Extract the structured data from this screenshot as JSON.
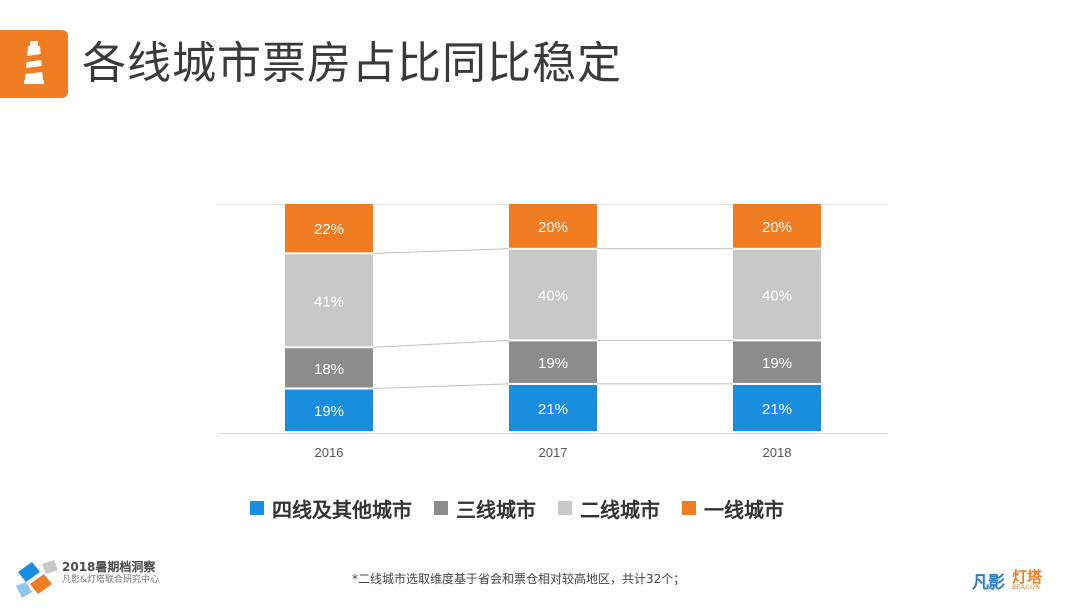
{
  "header": {
    "title": "各线城市票房占比同比稳定"
  },
  "colors": {
    "accent": "#f07d22",
    "series": [
      "#1a8ede",
      "#8c8c8c",
      "#c8c8c8",
      "#f07d22"
    ]
  },
  "chart_data": {
    "type": "bar",
    "stacked": true,
    "categories": [
      "2016",
      "2017",
      "2018"
    ],
    "series": [
      {
        "name": "四线及其他城市",
        "values": [
          19,
          21,
          21
        ]
      },
      {
        "name": "三线城市",
        "values": [
          18,
          19,
          19
        ]
      },
      {
        "name": "二线城市",
        "values": [
          41,
          40,
          40
        ]
      },
      {
        "name": "一线城市",
        "values": [
          22,
          20,
          20
        ]
      }
    ],
    "data_labels": [
      [
        "19%",
        "21%",
        "21%"
      ],
      [
        "18%",
        "19%",
        "19%"
      ],
      [
        "41%",
        "40%",
        "40%"
      ],
      [
        "22%",
        "20%",
        "20%"
      ]
    ],
    "legend_position": "bottom",
    "grid": false,
    "connector_lines": true
  },
  "footer": {
    "brand_title": "2018暑期档洞察",
    "brand_subtitle": "凡影&灯塔联合研究中心",
    "footnote": "*二线城市选取维度基于省会和票仓相对较高地区，共计32个；",
    "logo_fenying": "凡影",
    "logo_beacon": "灯塔",
    "logo_beacon_en": "BEACON"
  }
}
